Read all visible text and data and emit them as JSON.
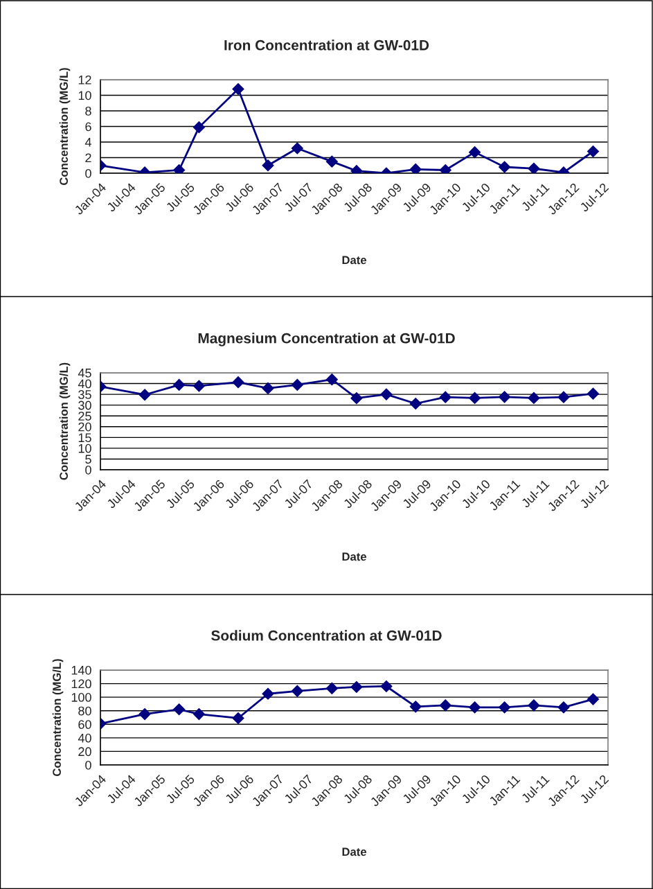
{
  "chart_data": [
    {
      "type": "line",
      "title": "Iron Concentration at GW-01D",
      "xlabel": "Date",
      "ylabel": "Concentration (MG/L)",
      "x": [
        "2004-01",
        "2004-10",
        "2005-05",
        "2005-09",
        "2006-05",
        "2006-11",
        "2007-05",
        "2007-12",
        "2008-05",
        "2008-11",
        "2009-05",
        "2009-11",
        "2010-05",
        "2010-11",
        "2011-05",
        "2011-11",
        "2012-05"
      ],
      "series": [
        {
          "color": "#000080",
          "values": [
            1.0,
            0.1,
            0.4,
            5.9,
            10.8,
            1.0,
            3.2,
            1.5,
            0.3,
            0.0,
            0.5,
            0.4,
            2.7,
            0.8,
            0.6,
            0.1,
            2.8
          ]
        }
      ],
      "xlim": [
        "2004-01",
        "2012-08"
      ],
      "xticks": [
        {
          "value": "2004-01",
          "label": "Jan-04"
        },
        {
          "value": "2004-07",
          "label": "Jul-04"
        },
        {
          "value": "2005-01",
          "label": "Jan-05"
        },
        {
          "value": "2005-07",
          "label": "Jul-05"
        },
        {
          "value": "2006-01",
          "label": "Jan-06"
        },
        {
          "value": "2006-07",
          "label": "Jul-06"
        },
        {
          "value": "2007-01",
          "label": "Jan-07"
        },
        {
          "value": "2007-07",
          "label": "Jul-07"
        },
        {
          "value": "2008-01",
          "label": "Jan-08"
        },
        {
          "value": "2008-07",
          "label": "Jul-08"
        },
        {
          "value": "2009-01",
          "label": "Jan-09"
        },
        {
          "value": "2009-07",
          "label": "Jul-09"
        },
        {
          "value": "2010-01",
          "label": "Jan-10"
        },
        {
          "value": "2010-07",
          "label": "Jul-10"
        },
        {
          "value": "2011-01",
          "label": "Jan-11"
        },
        {
          "value": "2011-07",
          "label": "Jul-11"
        },
        {
          "value": "2012-01",
          "label": "Jan-12"
        },
        {
          "value": "2012-07",
          "label": "Jul-12"
        }
      ],
      "ylim": [
        0,
        12
      ],
      "yticks": [
        0,
        2,
        4,
        6,
        8,
        10,
        12
      ],
      "grid": "y",
      "marker": "diamond",
      "line_style": "solid",
      "legend": false
    },
    {
      "type": "line",
      "title": "Magnesium Concentration at GW-01D",
      "xlabel": "Date",
      "ylabel": "Concentration (MG/L)",
      "x": [
        "2004-01",
        "2004-10",
        "2005-05",
        "2005-09",
        "2006-05",
        "2006-11",
        "2007-05",
        "2007-12",
        "2008-05",
        "2008-11",
        "2009-05",
        "2009-11",
        "2010-05",
        "2010-11",
        "2011-05",
        "2011-11",
        "2012-05"
      ],
      "series": [
        {
          "color": "#000080",
          "values": [
            38.6,
            34.8,
            39.4,
            38.9,
            40.6,
            37.8,
            39.4,
            41.9,
            33.2,
            35.0,
            30.7,
            33.7,
            33.3,
            33.8,
            33.3,
            33.7,
            35.3
          ]
        }
      ],
      "xlim": [
        "2004-01",
        "2012-08"
      ],
      "xticks": [
        {
          "value": "2004-01",
          "label": "Jan-04"
        },
        {
          "value": "2004-07",
          "label": "Jul-04"
        },
        {
          "value": "2005-01",
          "label": "Jan-05"
        },
        {
          "value": "2005-07",
          "label": "Jul-05"
        },
        {
          "value": "2006-01",
          "label": "Jan-06"
        },
        {
          "value": "2006-07",
          "label": "Jul-06"
        },
        {
          "value": "2007-01",
          "label": "Jan-07"
        },
        {
          "value": "2007-07",
          "label": "Jul-07"
        },
        {
          "value": "2008-01",
          "label": "Jan-08"
        },
        {
          "value": "2008-07",
          "label": "Jul-08"
        },
        {
          "value": "2009-01",
          "label": "Jan-09"
        },
        {
          "value": "2009-07",
          "label": "Jul-09"
        },
        {
          "value": "2010-01",
          "label": "Jan-10"
        },
        {
          "value": "2010-07",
          "label": "Jul-10"
        },
        {
          "value": "2011-01",
          "label": "Jan-11"
        },
        {
          "value": "2011-07",
          "label": "Jul-11"
        },
        {
          "value": "2012-01",
          "label": "Jan-12"
        },
        {
          "value": "2012-07",
          "label": "Jul-12"
        }
      ],
      "ylim": [
        0,
        45
      ],
      "yticks": [
        0,
        5,
        10,
        15,
        20,
        25,
        30,
        35,
        40,
        45
      ],
      "grid": "y",
      "marker": "diamond",
      "line_style": "solid",
      "legend": false
    },
    {
      "type": "line",
      "title": "Sodium Concentration at GW-01D",
      "xlabel": "Date",
      "ylabel": "Concentration (MG/L)",
      "x": [
        "2004-01",
        "2004-10",
        "2005-05",
        "2005-09",
        "2006-05",
        "2006-11",
        "2007-05",
        "2007-12",
        "2008-05",
        "2008-11",
        "2009-05",
        "2009-11",
        "2010-05",
        "2010-11",
        "2011-05",
        "2011-11",
        "2012-05"
      ],
      "series": [
        {
          "color": "#000080",
          "values": [
            61,
            75,
            82,
            75,
            69,
            105,
            109,
            113,
            115,
            116,
            86,
            88,
            85,
            85,
            88,
            85,
            97
          ]
        }
      ],
      "xlim": [
        "2004-01",
        "2012-08"
      ],
      "xticks": [
        {
          "value": "2004-01",
          "label": "Jan-04"
        },
        {
          "value": "2004-07",
          "label": "Jul-04"
        },
        {
          "value": "2005-01",
          "label": "Jan-05"
        },
        {
          "value": "2005-07",
          "label": "Jul-05"
        },
        {
          "value": "2006-01",
          "label": "Jan-06"
        },
        {
          "value": "2006-07",
          "label": "Jul-06"
        },
        {
          "value": "2007-01",
          "label": "Jan-07"
        },
        {
          "value": "2007-07",
          "label": "Jul-07"
        },
        {
          "value": "2008-01",
          "label": "Jan-08"
        },
        {
          "value": "2008-07",
          "label": "Jul-08"
        },
        {
          "value": "2009-01",
          "label": "Jan-09"
        },
        {
          "value": "2009-07",
          "label": "Jul-09"
        },
        {
          "value": "2010-01",
          "label": "Jan-10"
        },
        {
          "value": "2010-07",
          "label": "Jul-10"
        },
        {
          "value": "2011-01",
          "label": "Jan-11"
        },
        {
          "value": "2011-07",
          "label": "Jul-11"
        },
        {
          "value": "2012-01",
          "label": "Jan-12"
        },
        {
          "value": "2012-07",
          "label": "Jul-12"
        }
      ],
      "ylim": [
        0,
        140
      ],
      "yticks": [
        0,
        20,
        40,
        60,
        80,
        100,
        120,
        140
      ],
      "grid": "y",
      "marker": "diamond",
      "line_style": "solid",
      "legend": false
    }
  ]
}
